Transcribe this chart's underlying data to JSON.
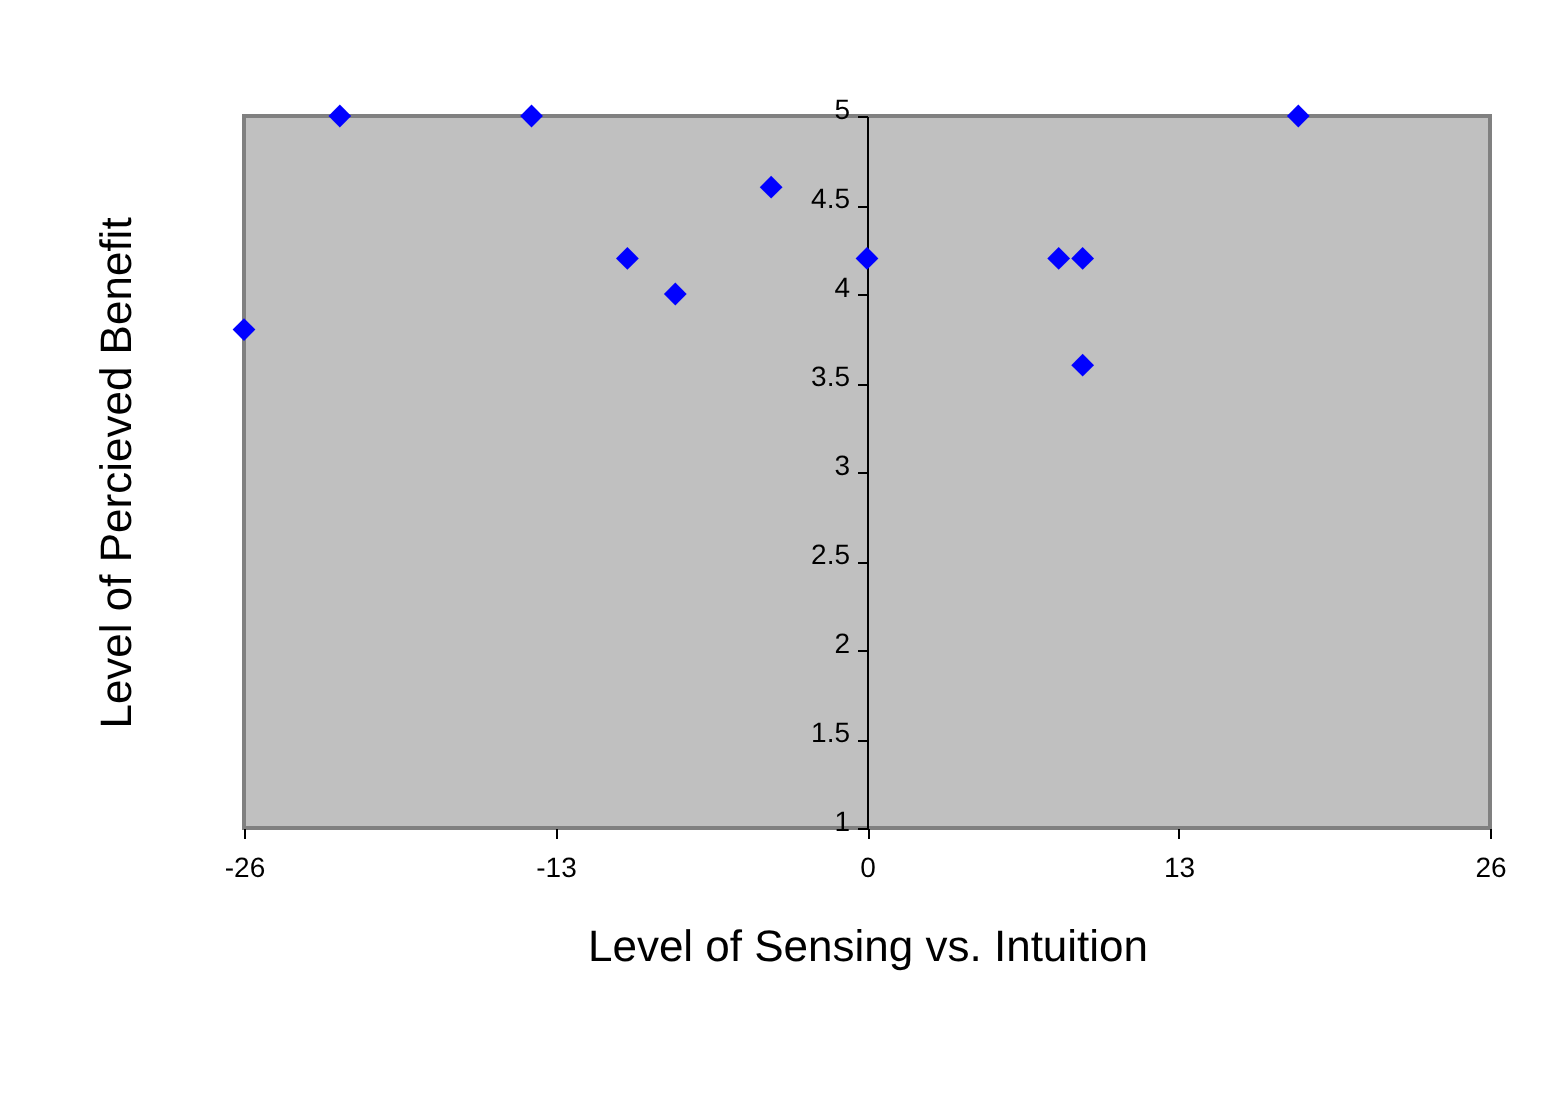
{
  "chart_data": {
    "type": "scatter",
    "xlabel": "Level of Sensing vs. Intuition",
    "ylabel": "Level of Percieved Benefit",
    "x": [
      -26,
      -22,
      -14,
      -10,
      -8,
      -4,
      0,
      8,
      9,
      9,
      18
    ],
    "series": [
      {
        "color": "#0000ff",
        "values": [
          3.8,
          5,
          5,
          4.2,
          4,
          4.6,
          4.2,
          4.2,
          4.2,
          3.6,
          5
        ]
      }
    ],
    "xlim": [
      -26,
      26
    ],
    "xticks": [
      -26,
      -13,
      0,
      13,
      26
    ],
    "ylim": [
      1,
      5
    ],
    "yticks": [
      1,
      1.5,
      2,
      2.5,
      3,
      3.5,
      4,
      4.5,
      5
    ],
    "marker": "diamond",
    "grid": false,
    "legend": false
  }
}
